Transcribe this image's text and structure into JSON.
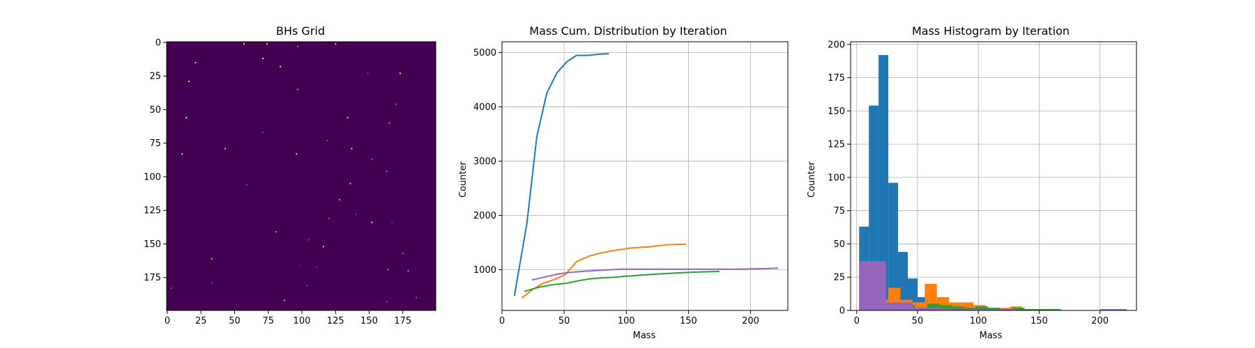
{
  "chart_data": [
    {
      "type": "heatmap",
      "title": "BHs Grid",
      "xlabel": "",
      "ylabel": "",
      "xlim": [
        0,
        199
      ],
      "ylim": [
        199,
        0
      ],
      "xticks": [
        0,
        25,
        50,
        75,
        100,
        125,
        150,
        175
      ],
      "yticks": [
        0,
        25,
        50,
        75,
        100,
        125,
        150,
        175
      ],
      "background_color": "#440154",
      "points": [
        {
          "x": 57,
          "y": 1,
          "c": "#fde725"
        },
        {
          "x": 74,
          "y": 1,
          "c": "#fde725"
        },
        {
          "x": 97,
          "y": 3,
          "c": "#35b779"
        },
        {
          "x": 125,
          "y": 1,
          "c": "#b5de2b"
        },
        {
          "x": 71,
          "y": 12,
          "c": "#fde725"
        },
        {
          "x": 21,
          "y": 15,
          "c": "#fde725"
        },
        {
          "x": 84,
          "y": 18,
          "c": "#fde725"
        },
        {
          "x": 149,
          "y": 23,
          "c": "#31688e"
        },
        {
          "x": 173,
          "y": 23,
          "c": "#fde725"
        },
        {
          "x": 16,
          "y": 29,
          "c": "#fde725"
        },
        {
          "x": 97,
          "y": 35,
          "c": "#6ece58"
        },
        {
          "x": 170,
          "y": 46,
          "c": "#1f9e89"
        },
        {
          "x": 14,
          "y": 56,
          "c": "#fde725"
        },
        {
          "x": 134,
          "y": 56,
          "c": "#fde725"
        },
        {
          "x": 165,
          "y": 60,
          "c": "#6ece58"
        },
        {
          "x": 71,
          "y": 67,
          "c": "#31688e"
        },
        {
          "x": 119,
          "y": 73,
          "c": "#26828e"
        },
        {
          "x": 43,
          "y": 79,
          "c": "#fde725"
        },
        {
          "x": 137,
          "y": 79,
          "c": "#fde725"
        },
        {
          "x": 11,
          "y": 83,
          "c": "#fde725"
        },
        {
          "x": 96,
          "y": 83,
          "c": "#fde725"
        },
        {
          "x": 152,
          "y": 87,
          "c": "#1f9e89"
        },
        {
          "x": 163,
          "y": 96,
          "c": "#35b779"
        },
        {
          "x": 136,
          "y": 105,
          "c": "#b5de2b"
        },
        {
          "x": 59,
          "y": 106,
          "c": "#31688e"
        },
        {
          "x": 128,
          "y": 117,
          "c": "#6ece58"
        },
        {
          "x": 140,
          "y": 128,
          "c": "#31688e"
        },
        {
          "x": 120,
          "y": 131,
          "c": "#1f9e89"
        },
        {
          "x": 152,
          "y": 134,
          "c": "#fde725"
        },
        {
          "x": 167,
          "y": 134,
          "c": "#3e4989"
        },
        {
          "x": 81,
          "y": 141,
          "c": "#6ece58"
        },
        {
          "x": 105,
          "y": 147,
          "c": "#26828e"
        },
        {
          "x": 116,
          "y": 152,
          "c": "#fde725"
        },
        {
          "x": 175,
          "y": 157,
          "c": "#1f9e89"
        },
        {
          "x": 33,
          "y": 161,
          "c": "#b5de2b"
        },
        {
          "x": 99,
          "y": 166,
          "c": "#482878"
        },
        {
          "x": 111,
          "y": 167,
          "c": "#3e4989"
        },
        {
          "x": 164,
          "y": 169,
          "c": "#35b779"
        },
        {
          "x": 179,
          "y": 170,
          "c": "#6ece58"
        },
        {
          "x": 33,
          "y": 179,
          "c": "#31688e"
        },
        {
          "x": 104,
          "y": 181,
          "c": "#26828e"
        },
        {
          "x": 3,
          "y": 183,
          "c": "#1f9e89"
        },
        {
          "x": 87,
          "y": 192,
          "c": "#b5de2b"
        },
        {
          "x": 163,
          "y": 193,
          "c": "#26828e"
        },
        {
          "x": 185,
          "y": 190,
          "c": "#1f9e89"
        }
      ]
    },
    {
      "type": "line",
      "title": "Mass Cum. Distribution by Iteration",
      "xlabel": "Mass",
      "ylabel": "Counter",
      "xlim": [
        0,
        230
      ],
      "ylim": [
        250,
        5200
      ],
      "xticks": [
        0,
        50,
        100,
        150,
        200
      ],
      "yticks": [
        1000,
        2000,
        3000,
        4000,
        5000
      ],
      "grid": true,
      "series": [
        {
          "color": "#1f77b4",
          "x": [
            10,
            20,
            28,
            36,
            44,
            52,
            60,
            70,
            78,
            86
          ],
          "y": [
            520,
            1850,
            3450,
            4250,
            4620,
            4830,
            4950,
            4950,
            4970,
            4980
          ]
        },
        {
          "color": "#ff7f0e",
          "x": [
            16,
            25,
            33,
            42,
            51,
            60,
            70,
            80,
            92,
            104,
            118,
            133,
            148
          ],
          "y": [
            480,
            640,
            750,
            820,
            910,
            1150,
            1250,
            1310,
            1360,
            1400,
            1420,
            1460,
            1470
          ]
        },
        {
          "color": "#2ca02c",
          "x": [
            18,
            30,
            40,
            52,
            60,
            70,
            80,
            90,
            100,
            112,
            125,
            140,
            155,
            175
          ],
          "y": [
            600,
            680,
            720,
            750,
            790,
            830,
            850,
            860,
            880,
            900,
            920,
            940,
            955,
            970
          ]
        },
        {
          "color": "#9467bd",
          "x": [
            24,
            35,
            45,
            55,
            65,
            80,
            95,
            110,
            130,
            150,
            170,
            190,
            210,
            222
          ],
          "y": [
            810,
            870,
            920,
            950,
            970,
            990,
            1010,
            1010,
            1010,
            1010,
            1010,
            1010,
            1020,
            1030
          ]
        }
      ]
    },
    {
      "type": "bar",
      "title": "Mass Histogram by Iteration",
      "xlabel": "Mass",
      "ylabel": "Counter",
      "xlim": [
        -5,
        230
      ],
      "ylim": [
        0,
        202
      ],
      "xticks": [
        0,
        50,
        100,
        150,
        200
      ],
      "yticks": [
        0,
        25,
        50,
        75,
        100,
        125,
        150,
        175,
        200
      ],
      "grid": true,
      "series": [
        {
          "color": "#1f77b4",
          "bins": [
            [
              2,
              10,
              63
            ],
            [
              10,
              18,
              154
            ],
            [
              18,
              26,
              192
            ],
            [
              26,
              34,
              96
            ],
            [
              34,
              42,
              44
            ],
            [
              42,
              50,
              24
            ],
            [
              50,
              58,
              10
            ],
            [
              58,
              66,
              6
            ],
            [
              66,
              74,
              3
            ],
            [
              74,
              82,
              2
            ]
          ]
        },
        {
          "color": "#ff7f0e",
          "bins": [
            [
              16,
              26,
              8
            ],
            [
              26,
              36,
              17
            ],
            [
              36,
              46,
              8
            ],
            [
              46,
              56,
              6
            ],
            [
              56,
              66,
              20
            ],
            [
              66,
              76,
              10
            ],
            [
              76,
              86,
              6
            ],
            [
              86,
              96,
              6
            ],
            [
              96,
              106,
              4
            ],
            [
              106,
              116,
              2
            ],
            [
              116,
              126,
              2
            ],
            [
              126,
              136,
              3
            ],
            [
              136,
              146,
              1
            ]
          ]
        },
        {
          "color": "#2ca02c",
          "bins": [
            [
              18,
              28,
              5
            ],
            [
              28,
              38,
              6
            ],
            [
              38,
              48,
              4
            ],
            [
              48,
              58,
              2
            ],
            [
              58,
              68,
              5
            ],
            [
              68,
              78,
              4
            ],
            [
              78,
              88,
              3
            ],
            [
              88,
              98,
              2
            ],
            [
              98,
              108,
              3
            ],
            [
              108,
              118,
              2
            ],
            [
              118,
              128,
              1
            ],
            [
              128,
              138,
              2
            ],
            [
              138,
              148,
              1
            ],
            [
              148,
              158,
              1
            ],
            [
              158,
              168,
              1
            ],
            [
              168,
              175,
              0
            ]
          ]
        },
        {
          "color": "#9467bd",
          "bins": [
            [
              2,
              24,
              37
            ],
            [
              24,
              46,
              6
            ],
            [
              46,
              68,
              2
            ],
            [
              68,
              90,
              1
            ],
            [
              90,
              112,
              1
            ],
            [
              112,
              134,
              1
            ],
            [
              134,
              156,
              0
            ],
            [
              156,
              178,
              0
            ],
            [
              178,
              200,
              0
            ],
            [
              200,
              222,
              1
            ]
          ]
        }
      ]
    }
  ]
}
